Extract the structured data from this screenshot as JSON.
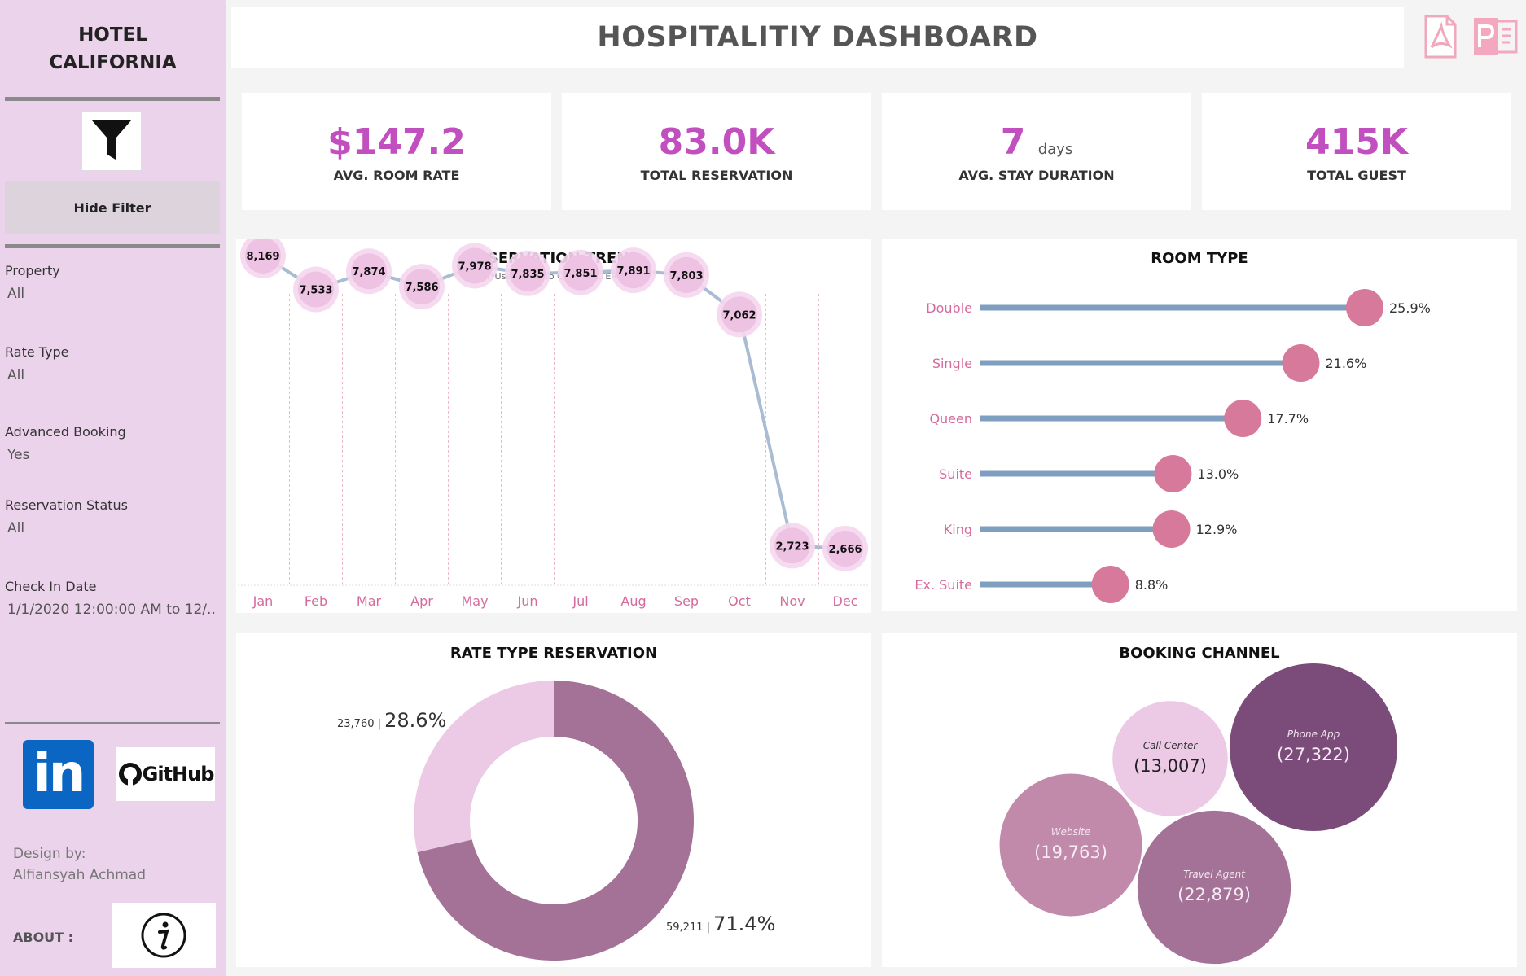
{
  "sidebar": {
    "hotel_name_line1": "HOTEL",
    "hotel_name_line2": "CALIFORNIA",
    "hide_filter_label": "Hide Filter",
    "filters": [
      {
        "label": "Property",
        "value": "All"
      },
      {
        "label": "Rate Type",
        "value": "All"
      },
      {
        "label": "Advanced Booking",
        "value": "Yes"
      },
      {
        "label": "Reservation Status",
        "value": "All"
      },
      {
        "label": "Check In Date",
        "value": "1/1/2020 12:00:00 AM to 12/.."
      }
    ],
    "linkedin_label": "in",
    "github_label": "GitHub",
    "design_by_label": "Design by:",
    "designer_name": "Alfiansyah Achmad",
    "about_label": "ABOUT :"
  },
  "header": {
    "title": "HOSPITALITIY DASHBOARD",
    "export_icons": [
      "pdf-icon",
      "powerpoint-icon"
    ]
  },
  "kpis": [
    {
      "value": "$147.2",
      "unit": "",
      "label": "AVG. ROOM RATE"
    },
    {
      "value": "83.0K",
      "unit": "",
      "label": "TOTAL RESERVATION"
    },
    {
      "value": "7",
      "unit": "days",
      "label": "AVG. STAY DURATION"
    },
    {
      "value": "415K",
      "unit": "",
      "label": "TOTAL GUEST"
    }
  ],
  "reservation_trend": {
    "title": "RESERVATION TREND",
    "subtitle": "(*Use Month to QUICK FILTER)"
  },
  "room_type": {
    "title": "ROOM TYPE"
  },
  "rate_type": {
    "title": "RATE TYPE RESERVATION"
  },
  "booking_channel": {
    "title": "BOOKING CHANNEL"
  },
  "colors": {
    "accent": "#c24fbf",
    "sidebar_bg": "#ecd3ec",
    "line": "#a9bcd3",
    "lollipop_bar": "#7f9fc1",
    "lollipop_dot": "#d6799a",
    "donut_dark": "#a47297",
    "donut_light": "#ecc9e4"
  },
  "chart_data": [
    {
      "type": "line",
      "title": "RESERVATION TREND",
      "categories": [
        "Jan",
        "Feb",
        "Mar",
        "Apr",
        "May",
        "Jun",
        "Jul",
        "Aug",
        "Sep",
        "Oct",
        "Nov",
        "Dec"
      ],
      "values": [
        8169,
        7533,
        7874,
        7586,
        7978,
        7835,
        7851,
        7891,
        7803,
        7062,
        2723,
        2666
      ],
      "labels": [
        "8,169",
        "7,533",
        "7,874",
        "7,586",
        "7,978",
        "7,835",
        "7,851",
        "7,891",
        "7,803",
        "7,062",
        "2,723",
        "2,666"
      ],
      "ylim": [
        0,
        8500
      ]
    },
    {
      "type": "bar",
      "title": "ROOM TYPE",
      "categories": [
        "Double",
        "Single",
        "Queen",
        "Suite",
        "King",
        "Ex. Suite"
      ],
      "values": [
        25.9,
        21.6,
        17.7,
        13.0,
        12.9,
        8.8
      ],
      "labels": [
        "25.9%",
        "21.6%",
        "17.7%",
        "13.0%",
        "12.9%",
        "8.8%"
      ],
      "xlim": [
        0,
        30
      ]
    },
    {
      "type": "pie",
      "title": "RATE TYPE RESERVATION",
      "slices": [
        {
          "value": 59211,
          "count_label": "59,211",
          "pct_label": "71.4%",
          "percent": 71.4,
          "color": "#a47297"
        },
        {
          "value": 23760,
          "count_label": "23,760",
          "pct_label": "28.6%",
          "percent": 28.6,
          "color": "#ecc9e4"
        }
      ]
    },
    {
      "type": "scatter",
      "title": "BOOKING CHANNEL",
      "bubbles": [
        {
          "name": "Call Center",
          "value": 13007,
          "value_label": "(13,007)",
          "color": "#ecc9e4"
        },
        {
          "name": "Phone App",
          "value": 27322,
          "value_label": "(27,322)",
          "color": "#7b4c7a"
        },
        {
          "name": "Website",
          "value": 19763,
          "value_label": "(19,763)",
          "color": "#c18aab"
        },
        {
          "name": "Travel Agent",
          "value": 22879,
          "value_label": "(22,879)",
          "color": "#a47297"
        }
      ]
    }
  ]
}
